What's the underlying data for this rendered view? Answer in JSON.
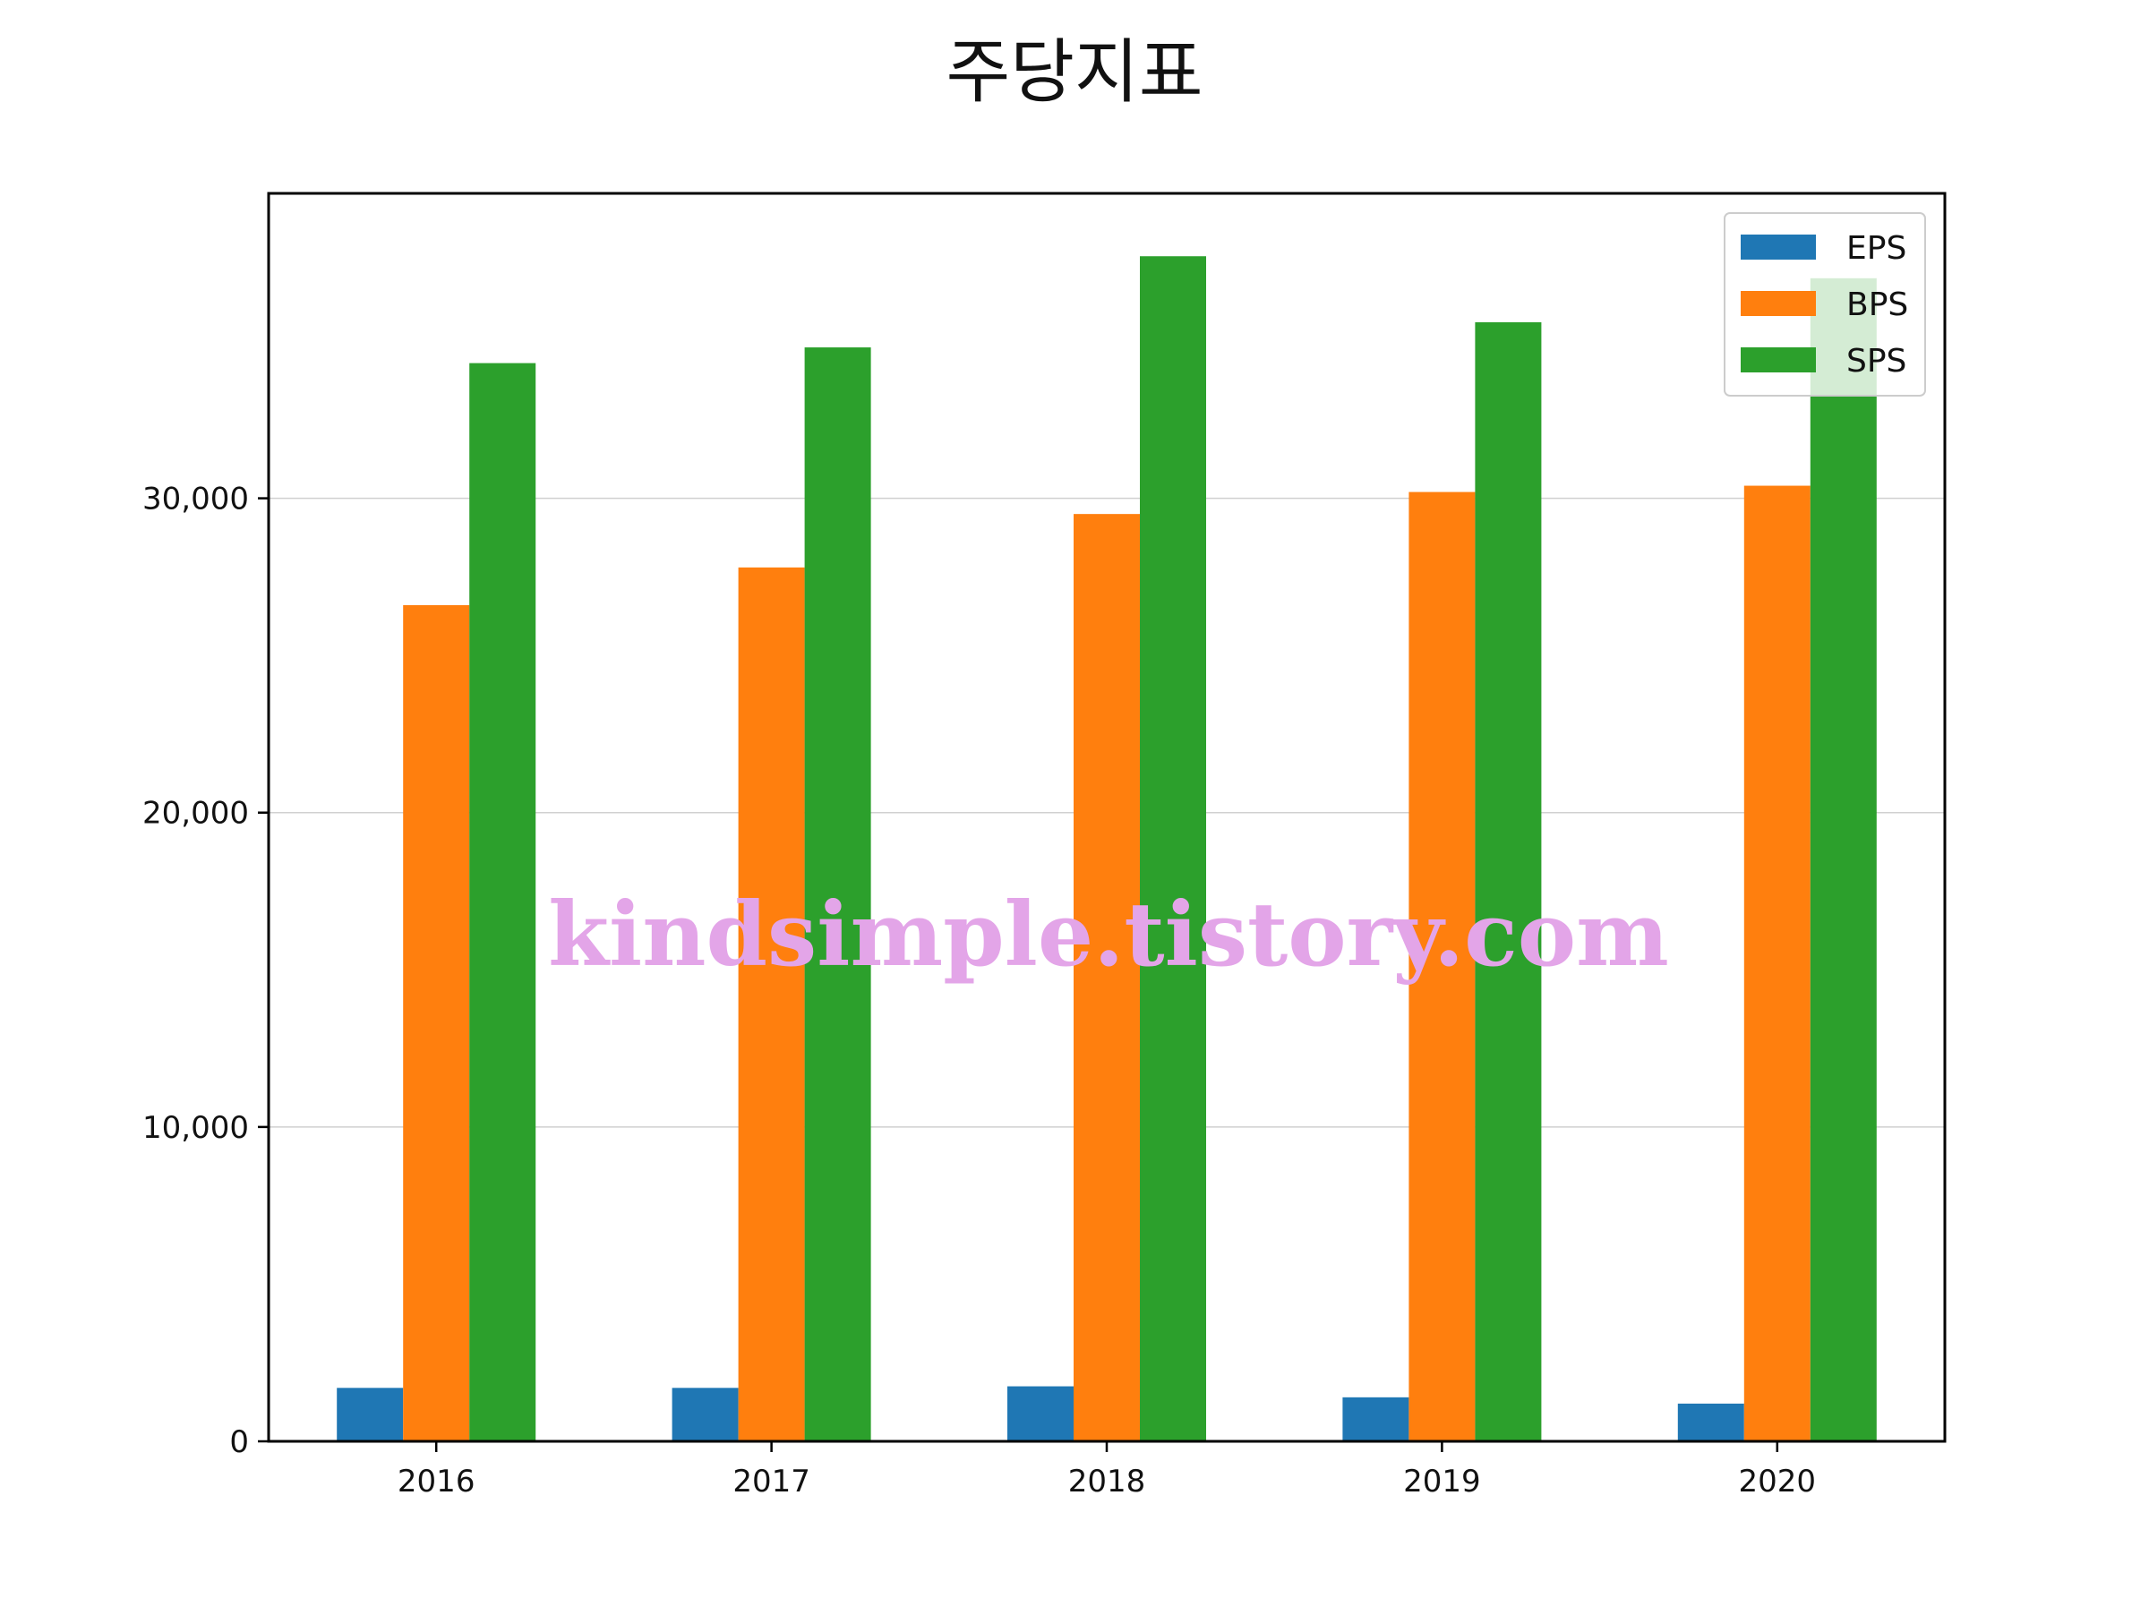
{
  "chart_data": {
    "type": "bar",
    "title": "주당지표",
    "xlabel": "",
    "ylabel": "",
    "categories": [
      "2016",
      "2017",
      "2018",
      "2019",
      "2020"
    ],
    "series": [
      {
        "name": "EPS",
        "color": "#1f77b4",
        "values": [
          1700,
          1700,
          1750,
          1400,
          1200
        ]
      },
      {
        "name": "BPS",
        "color": "#ff7f0e",
        "values": [
          26600,
          27800,
          29500,
          30200,
          30400
        ]
      },
      {
        "name": "SPS",
        "color": "#2ca02c",
        "values": [
          34300,
          34800,
          37700,
          35600,
          37000
        ]
      }
    ],
    "ylim": [
      0,
      39700
    ],
    "yticks": [
      0,
      10000,
      20000,
      30000
    ],
    "ytick_labels": [
      "0",
      "10,000",
      "20,000",
      "30,000"
    ],
    "grid": "horizontal",
    "legend_position": "top-right"
  },
  "watermark": {
    "text": "kindsimple.tistory.com",
    "color": "#e3a5e8"
  }
}
